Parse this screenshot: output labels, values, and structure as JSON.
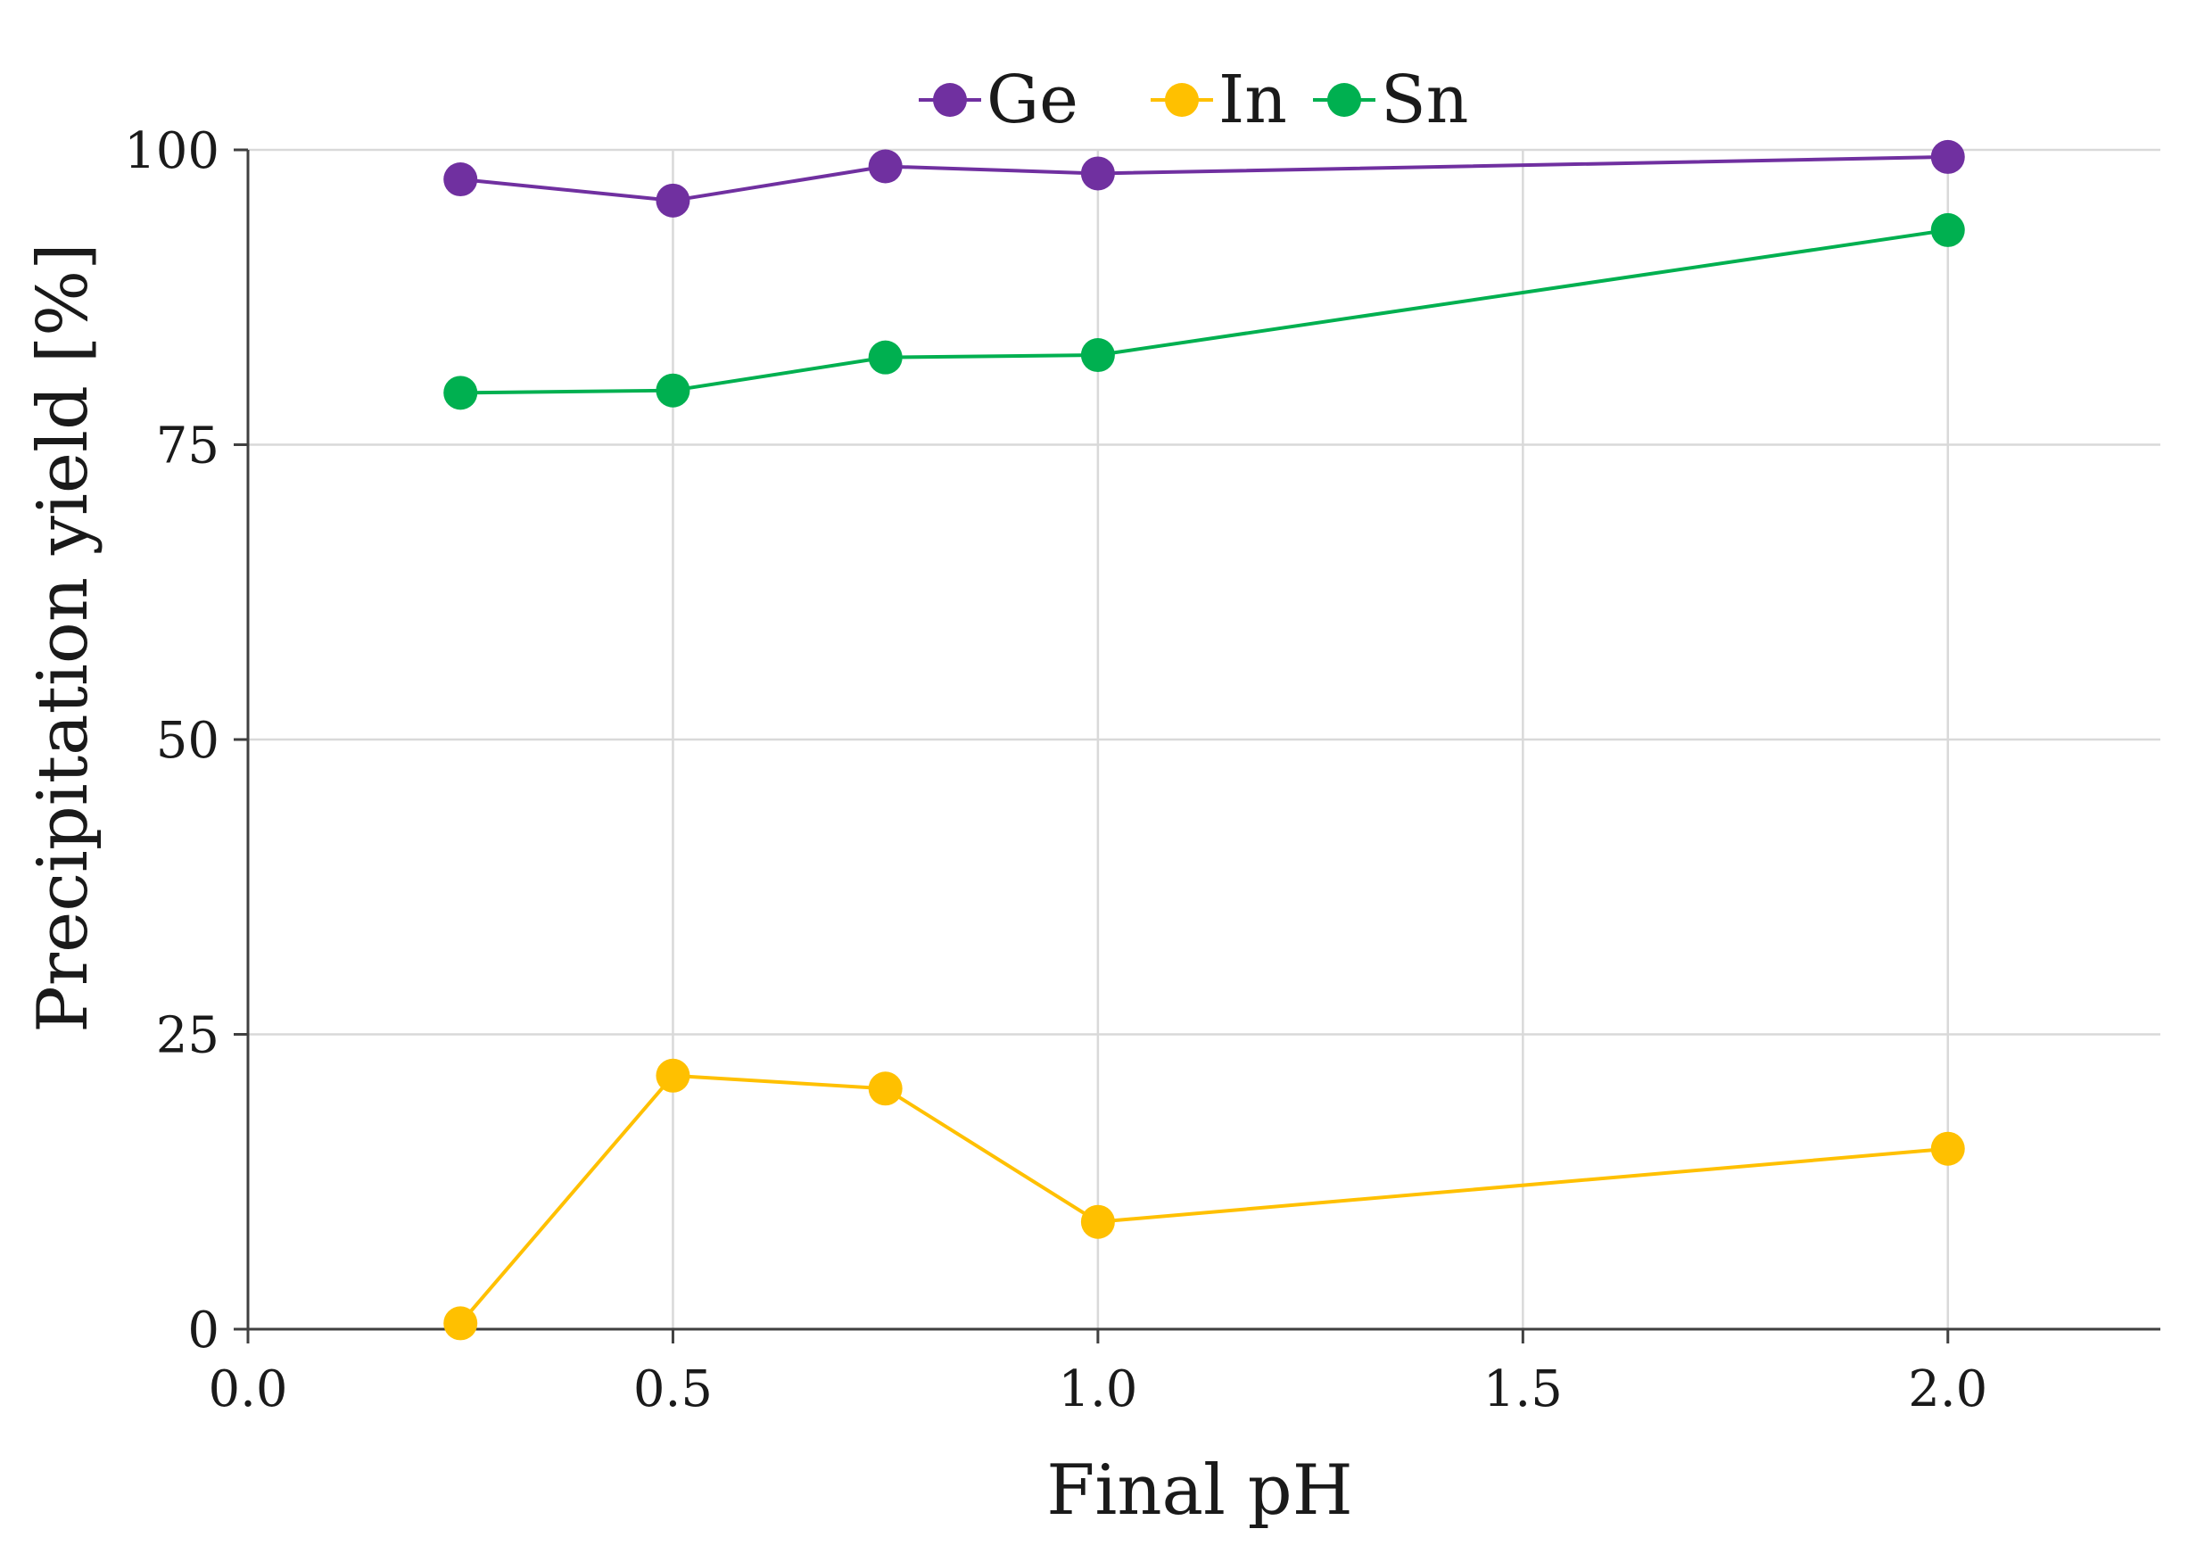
{
  "chart_data": {
    "type": "line",
    "title": "",
    "xlabel": "Final pH",
    "ylabel": "Precipitation yield [%]",
    "xlim": [
      0,
      2.25
    ],
    "ylim": [
      0,
      100
    ],
    "xticks": [
      0.0,
      0.5,
      1.0,
      1.5,
      2.0
    ],
    "xtick_labels": [
      "0.0",
      "0.5",
      "1.0",
      "1.5",
      "2.0"
    ],
    "yticks": [
      0,
      25,
      50,
      75,
      100
    ],
    "ytick_labels": [
      "0",
      "25",
      "50",
      "75",
      "100"
    ],
    "grid": true,
    "legend_position": "top-center",
    "x": [
      0.25,
      0.5,
      0.75,
      1.0,
      2.0
    ],
    "series": [
      {
        "name": "Ge",
        "color": "#7030A0",
        "values": [
          97.5,
          95.7,
          98.6,
          98.0,
          99.4
        ]
      },
      {
        "name": "In",
        "color": "#FFC000",
        "values": [
          0.5,
          21.5,
          20.4,
          9.1,
          15.3
        ]
      },
      {
        "name": "Sn",
        "color": "#00B050",
        "values": [
          79.4,
          79.6,
          82.4,
          82.6,
          93.2
        ]
      }
    ]
  }
}
